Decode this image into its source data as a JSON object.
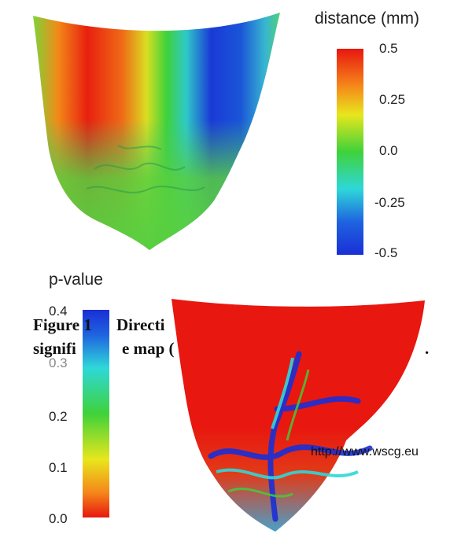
{
  "figure": {
    "caption_line1": "Figure 1",
    "caption_line1b": "Directi",
    "caption_line2a": "signifi",
    "caption_line2b": "e map (",
    "caption_period": ".",
    "watermark_url": "http://www.wscg.eu"
  },
  "distance_colorbar": {
    "title": "distance (mm)",
    "ticks": [
      "0.5",
      "0.25",
      "0.0",
      "-0.25",
      "-0.5"
    ]
  },
  "pvalue_colorbar": {
    "title": "p-value",
    "ticks": [
      "0.4",
      "0.3",
      "0.2",
      "0.1",
      "0.0"
    ],
    "overlap_glyphs": "0.3"
  },
  "colors": {
    "red": "#e8170f",
    "orange": "#f57a14",
    "yellow": "#e8e61c",
    "green": "#3fd23a",
    "cyan": "#2ed8d8",
    "blue": "#1a2fd6"
  }
}
